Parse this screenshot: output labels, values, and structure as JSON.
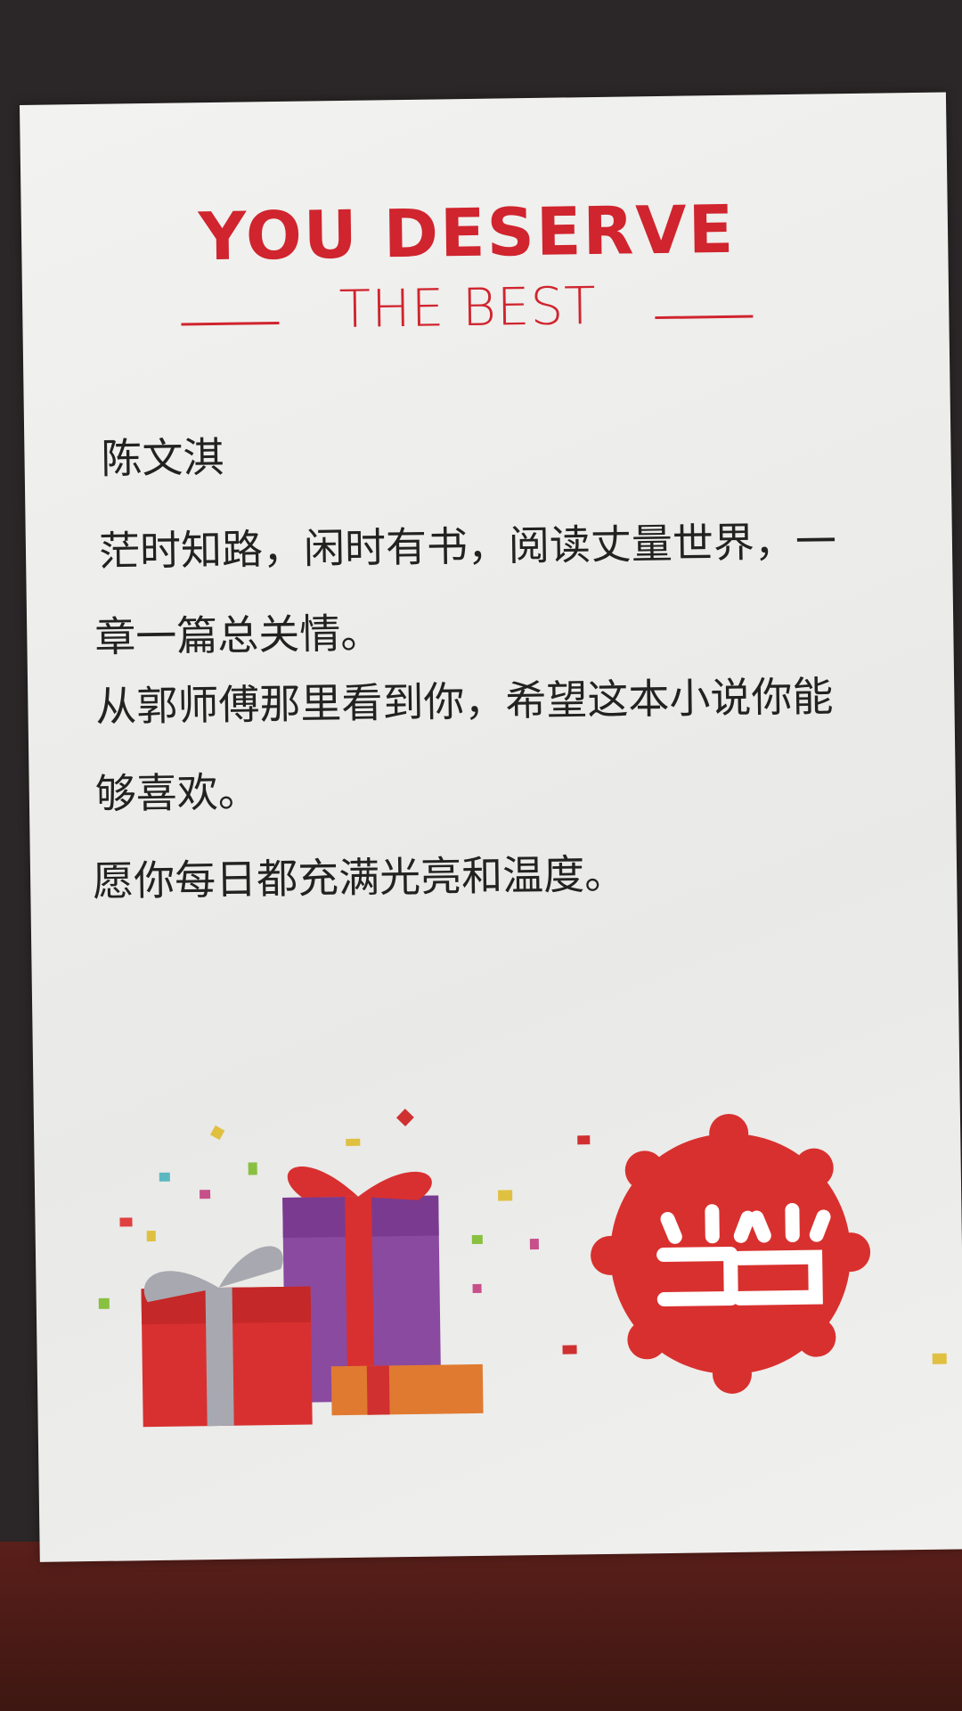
{
  "header": {
    "title": "YOU DESERVE",
    "subtitle": "THE BEST"
  },
  "letter": {
    "recipient": "陈文淇",
    "lines": [
      "茫时知路，闲时有书，阅读丈量世界，一",
      "章一篇总关情。",
      "从郭师傅那里看到你，希望这本小说你能",
      "够喜欢。",
      "愿你每日都充满光亮和温度。"
    ]
  }
}
